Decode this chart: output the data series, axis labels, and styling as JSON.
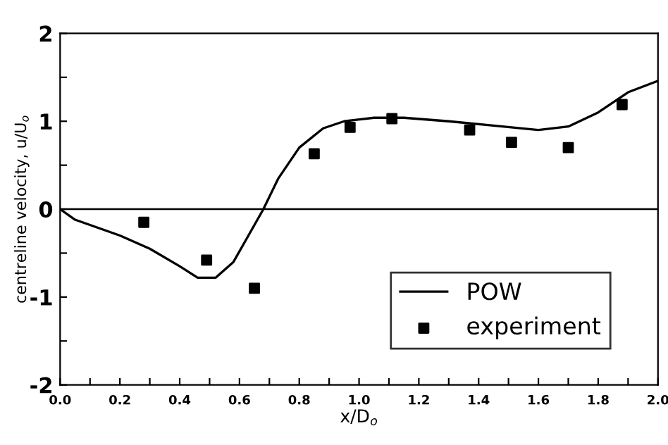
{
  "chart_data": {
    "type": "line",
    "xlabel": "x/D$_{o}$",
    "ylabel": "centreline velocity, u/U$_{o}$",
    "xlim": [
      0,
      2
    ],
    "ylim": [
      -2,
      2
    ],
    "xticks": [
      {
        "value": 0,
        "label": "0.0"
      },
      {
        "value": 0.1,
        "label": null
      },
      {
        "value": 0.2,
        "label": "0.2"
      },
      {
        "value": 0.3,
        "label": null
      },
      {
        "value": 0.4,
        "label": "0.4"
      },
      {
        "value": 0.5,
        "label": null
      },
      {
        "value": 0.6,
        "label": "0.6"
      },
      {
        "value": 0.7,
        "label": null
      },
      {
        "value": 0.8,
        "label": "0.8"
      },
      {
        "value": 0.9,
        "label": null
      },
      {
        "value": 1,
        "label": "1.0"
      },
      {
        "value": 1.1,
        "label": null
      },
      {
        "value": 1.2,
        "label": "1.2"
      },
      {
        "value": 1.3,
        "label": null
      },
      {
        "value": 1.4,
        "label": "1.4"
      },
      {
        "value": 1.5,
        "label": null
      },
      {
        "value": 1.6,
        "label": "1.6"
      },
      {
        "value": 1.7,
        "label": null
      },
      {
        "value": 1.8,
        "label": "1.8"
      },
      {
        "value": 1.9,
        "label": null
      },
      {
        "value": 2,
        "label": "2.0"
      }
    ],
    "yticks": [
      -2,
      {
        "value": -1.5,
        "label": null
      },
      -1,
      {
        "value": -0.5,
        "label": null
      },
      0,
      {
        "value": 0.5,
        "label": null
      },
      1,
      {
        "value": 1.5,
        "label": null
      },
      2
    ],
    "ref_lines": [
      {
        "axis": "y",
        "value": 0,
        "color": "#000000"
      }
    ],
    "legend": "bottom right",
    "grid": false,
    "series": [
      {
        "name": "POW",
        "color": "#000000",
        "line_style": "solid",
        "marker": "none",
        "x": [
          0,
          0.05,
          0.2,
          0.3,
          0.4,
          0.46,
          0.52,
          0.58,
          0.63,
          0.68,
          0.73,
          0.8,
          0.88,
          0.95,
          1.05,
          1.15,
          1.3,
          1.45,
          1.6,
          1.7,
          1.8,
          1.9,
          2.0
        ],
        "values": [
          0,
          -0.12,
          -0.3,
          -0.45,
          -0.65,
          -0.78,
          -0.78,
          -0.6,
          -0.3,
          0,
          0.35,
          0.7,
          0.92,
          1.0,
          1.04,
          1.04,
          1.0,
          0.95,
          0.9,
          0.94,
          1.1,
          1.33,
          1.46
        ]
      },
      {
        "name": "experiment",
        "type": "scatter",
        "color": "#000000",
        "marker": "square",
        "x": [
          0.28,
          0.49,
          0.65,
          0.85,
          0.97,
          1.11,
          1.37,
          1.51,
          1.7,
          1.88
        ],
        "values": [
          -0.15,
          -0.58,
          -0.9,
          0.63,
          0.93,
          1.03,
          0.9,
          0.76,
          0.7,
          1.19
        ]
      }
    ]
  }
}
